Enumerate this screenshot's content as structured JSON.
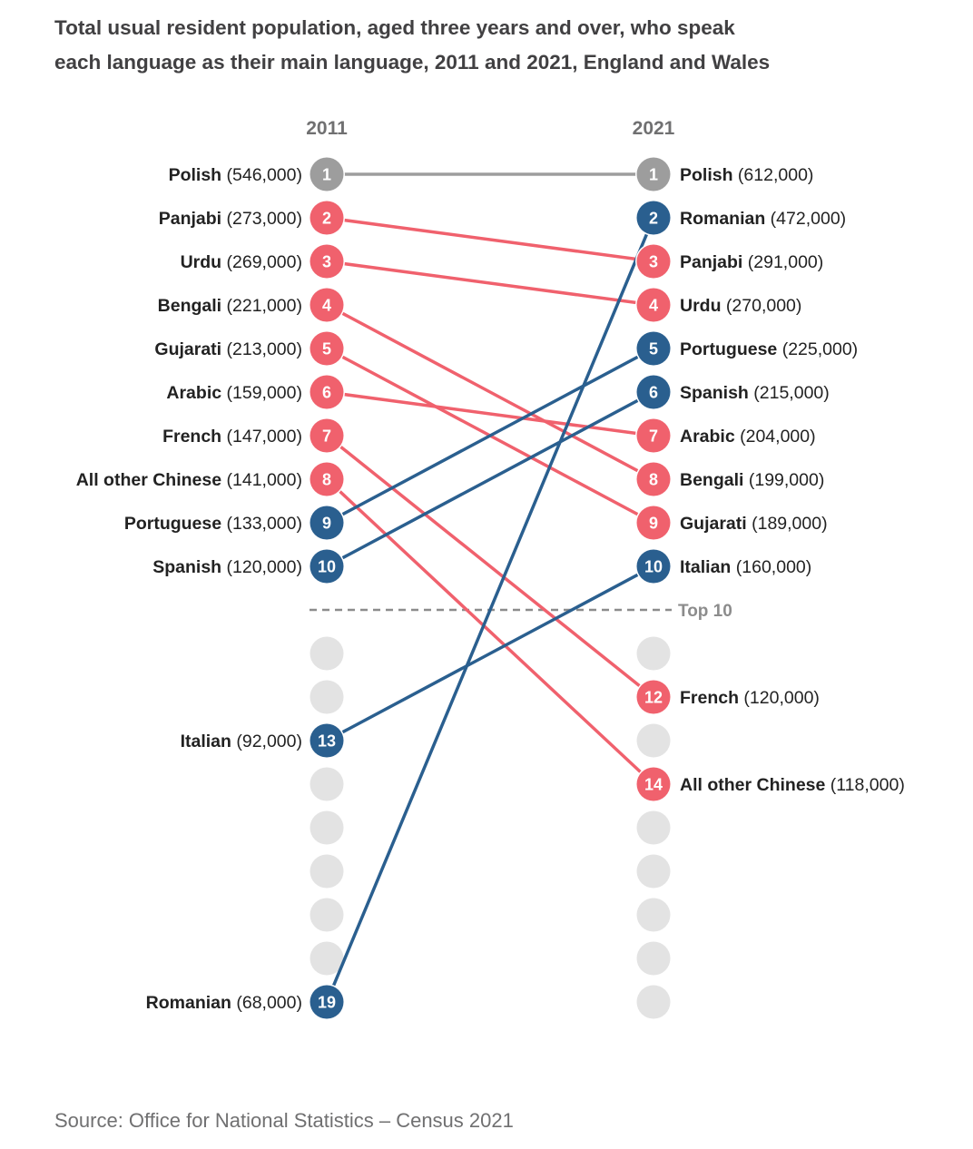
{
  "title_lines": [
    "Total usual resident population, aged three years and over, who speak",
    "each language as their main language, 2011 and 2021, England and Wales"
  ],
  "source": "Source: Office for National Statistics – Census 2021",
  "colors": {
    "up": "#2a5f8f",
    "down": "#f0616d",
    "same": "#9d9d9d",
    "empty": "#e3e3e3",
    "divider": "#8c8c8c"
  },
  "chart_data": {
    "type": "slope",
    "columns": [
      "2011",
      "2021"
    ],
    "max_rank": 19,
    "top_n": 10,
    "top_label": "Top 10",
    "languages": [
      {
        "name": "Polish",
        "rank_2011": 1,
        "value_2011": "546,000",
        "rank_2021": 1,
        "value_2021": "612,000",
        "change": "same"
      },
      {
        "name": "Panjabi",
        "rank_2011": 2,
        "value_2011": "273,000",
        "rank_2021": 3,
        "value_2021": "291,000",
        "change": "down"
      },
      {
        "name": "Urdu",
        "rank_2011": 3,
        "value_2011": "269,000",
        "rank_2021": 4,
        "value_2021": "270,000",
        "change": "down"
      },
      {
        "name": "Bengali",
        "rank_2011": 4,
        "value_2011": "221,000",
        "rank_2021": 8,
        "value_2021": "199,000",
        "change": "down"
      },
      {
        "name": "Gujarati",
        "rank_2011": 5,
        "value_2011": "213,000",
        "rank_2021": 9,
        "value_2021": "189,000",
        "change": "down"
      },
      {
        "name": "Arabic",
        "rank_2011": 6,
        "value_2011": "159,000",
        "rank_2021": 7,
        "value_2021": "204,000",
        "change": "down"
      },
      {
        "name": "French",
        "rank_2011": 7,
        "value_2011": "147,000",
        "rank_2021": 12,
        "value_2021": "120,000",
        "change": "down"
      },
      {
        "name": "All other Chinese",
        "rank_2011": 8,
        "value_2011": "141,000",
        "rank_2021": 14,
        "value_2021": "118,000",
        "change": "down"
      },
      {
        "name": "Portuguese",
        "rank_2011": 9,
        "value_2011": "133,000",
        "rank_2021": 5,
        "value_2021": "225,000",
        "change": "up"
      },
      {
        "name": "Spanish",
        "rank_2011": 10,
        "value_2011": "120,000",
        "rank_2021": 6,
        "value_2021": "215,000",
        "change": "up"
      },
      {
        "name": "Italian",
        "rank_2011": 13,
        "value_2011": "92,000",
        "rank_2021": 10,
        "value_2021": "160,000",
        "change": "up"
      },
      {
        "name": "Romanian",
        "rank_2011": 19,
        "value_2011": "68,000",
        "rank_2021": 2,
        "value_2021": "472,000",
        "change": "up"
      }
    ]
  }
}
